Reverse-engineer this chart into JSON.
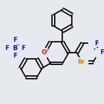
{
  "bg_color": "#e8e8f0",
  "line_color": "#000000",
  "bond_width": 1.3,
  "atom_colors": {
    "O": "#ff0000",
    "F": "#0000cc",
    "Br": "#cc8800",
    "B": "#0000cc",
    "C": "#000000"
  },
  "font_size": 6.5,
  "figsize": [
    1.52,
    1.52
  ],
  "dpi": 100,
  "xlim": [
    0,
    152
  ],
  "ylim": [
    0,
    152
  ]
}
